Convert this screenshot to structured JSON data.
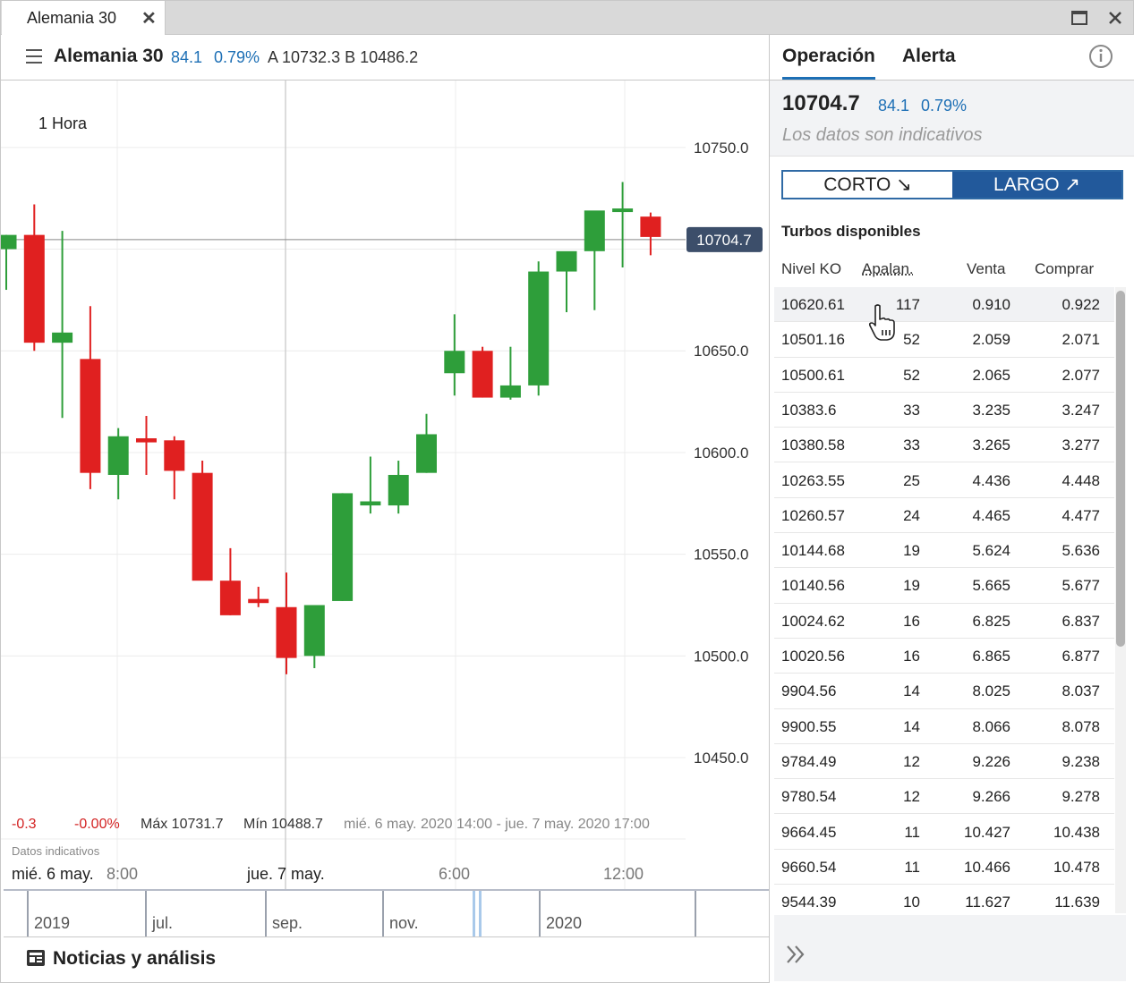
{
  "window": {
    "tab_title": "Alemania 30",
    "tab_close_icon": "close-icon",
    "maximize_icon": "maximize-icon",
    "close_icon": "close-icon"
  },
  "header": {
    "menu_icon": "hamburger-menu-icon",
    "instrument": "Alemania 30",
    "change": "84.1",
    "change_pct": "0.79%",
    "ask_bid": "A 10732.3  B 10486.2",
    "accent_color": "#1d6fb5"
  },
  "chart": {
    "timeframe": "1 Hora",
    "current_price_label": "10704.7",
    "stats": {
      "change": "-0.3",
      "change_pct": "-0.00%",
      "max": "Máx 10731.7",
      "min": "Mín 10488.7",
      "range": "mié. 6 may. 2020 14:00 - jue. 7 may. 2020 17:00"
    },
    "note": "Datos indicativos",
    "x_labels": [
      {
        "text": "mié. 6 may.",
        "bold": true
      },
      {
        "text": "8:00",
        "bold": false
      },
      {
        "text": "jue. 7 may.",
        "bold": true
      },
      {
        "text": "6:00",
        "bold": false
      },
      {
        "text": "12:00",
        "bold": false
      }
    ],
    "navigator_labels": [
      "2019",
      "jul.",
      "sep.",
      "nov.",
      "2020"
    ]
  },
  "chart_data": {
    "type": "candlestick",
    "ylim": [
      10410,
      10775
    ],
    "y_ticks": [
      "10750.0",
      "10650.0",
      "10600.0",
      "10550.0",
      "10500.0",
      "10450.0"
    ],
    "y_tick_values": [
      10750,
      10650,
      10600,
      10550,
      10500,
      10450
    ],
    "up_color": "#2e9e3a",
    "down_color": "#e02020",
    "current_price": 10704.7,
    "candles": [
      {
        "o": 10700,
        "h": 10707,
        "l": 10680,
        "c": 10707
      },
      {
        "o": 10707,
        "h": 10722,
        "l": 10650,
        "c": 10654
      },
      {
        "o": 10654,
        "h": 10709,
        "l": 10617,
        "c": 10659
      },
      {
        "o": 10646,
        "h": 10672,
        "l": 10582,
        "c": 10590
      },
      {
        "o": 10589,
        "h": 10612,
        "l": 10577,
        "c": 10608
      },
      {
        "o": 10607,
        "h": 10618,
        "l": 10589,
        "c": 10605
      },
      {
        "o": 10606,
        "h": 10608,
        "l": 10577,
        "c": 10591
      },
      {
        "o": 10590,
        "h": 10596,
        "l": 10539,
        "c": 10537
      },
      {
        "o": 10537,
        "h": 10553,
        "l": 10520,
        "c": 10520
      },
      {
        "o": 10528,
        "h": 10534,
        "l": 10524,
        "c": 10526
      },
      {
        "o": 10524,
        "h": 10541,
        "l": 10491,
        "c": 10499
      },
      {
        "o": 10500,
        "h": 10525,
        "l": 10494,
        "c": 10525
      },
      {
        "o": 10527,
        "h": 10580,
        "l": 10527,
        "c": 10580
      },
      {
        "o": 10574,
        "h": 10598,
        "l": 10570,
        "c": 10576
      },
      {
        "o": 10574,
        "h": 10596,
        "l": 10570,
        "c": 10589
      },
      {
        "o": 10590,
        "h": 10619,
        "l": 10590,
        "c": 10609
      },
      {
        "o": 10639,
        "h": 10668,
        "l": 10628,
        "c": 10650
      },
      {
        "o": 10650,
        "h": 10652,
        "l": 10627,
        "c": 10627
      },
      {
        "o": 10627,
        "h": 10652,
        "l": 10626,
        "c": 10633
      },
      {
        "o": 10633,
        "h": 10694,
        "l": 10628,
        "c": 10689
      },
      {
        "o": 10689,
        "h": 10697,
        "l": 10669,
        "c": 10699
      },
      {
        "o": 10699,
        "h": 10716,
        "l": 10670,
        "c": 10719
      },
      {
        "o": 10720,
        "h": 10733,
        "l": 10691,
        "c": 10720
      },
      {
        "o": 10716,
        "h": 10718,
        "l": 10697,
        "c": 10706
      }
    ]
  },
  "news": {
    "icon": "newspaper-icon",
    "label": "Noticias y análisis"
  },
  "panel": {
    "tabs": [
      "Operación",
      "Alerta"
    ],
    "info_icon": "info-icon",
    "price": "10704.7",
    "change": "84.1",
    "change_pct": "0.79%",
    "note": "Los datos son indicativos",
    "short_label": "CORTO ↘",
    "long_label": "LARGO ↗",
    "turbos_title": "Turbos disponibles",
    "columns": [
      "Nivel KO",
      "Apalan.",
      "Venta",
      "Comprar"
    ],
    "rows": [
      [
        "10620.61",
        "117",
        "0.910",
        "0.922"
      ],
      [
        "10501.16",
        "52",
        "2.059",
        "2.071"
      ],
      [
        "10500.61",
        "52",
        "2.065",
        "2.077"
      ],
      [
        "10383.6",
        "33",
        "3.235",
        "3.247"
      ],
      [
        "10380.58",
        "33",
        "3.265",
        "3.277"
      ],
      [
        "10263.55",
        "25",
        "4.436",
        "4.448"
      ],
      [
        "10260.57",
        "24",
        "4.465",
        "4.477"
      ],
      [
        "10144.68",
        "19",
        "5.624",
        "5.636"
      ],
      [
        "10140.56",
        "19",
        "5.665",
        "5.677"
      ],
      [
        "10024.62",
        "16",
        "6.825",
        "6.837"
      ],
      [
        "10020.56",
        "16",
        "6.865",
        "6.877"
      ],
      [
        "9904.56",
        "14",
        "8.025",
        "8.037"
      ],
      [
        "9900.55",
        "14",
        "8.066",
        "8.078"
      ],
      [
        "9784.49",
        "12",
        "9.226",
        "9.238"
      ],
      [
        "9780.54",
        "12",
        "9.266",
        "9.278"
      ],
      [
        "9664.45",
        "11",
        "10.427",
        "10.438"
      ],
      [
        "9660.54",
        "11",
        "10.466",
        "10.478"
      ],
      [
        "9544.39",
        "10",
        "11.627",
        "11.639"
      ]
    ],
    "expand_icon": "double-chevron-right-icon"
  }
}
